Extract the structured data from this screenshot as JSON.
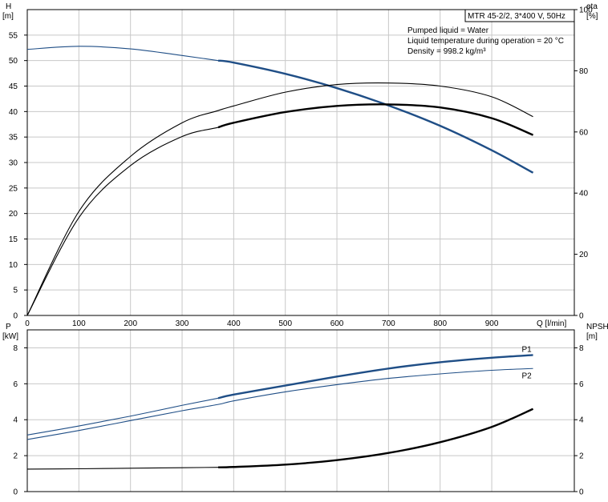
{
  "chart_data": [
    {
      "type": "line",
      "panel": "top",
      "title_box": "MTR 45-2/2, 3*400 V, 50Hz",
      "info_lines": [
        "Pumped liquid = Water",
        "Liquid temperature during operation = 20 °C",
        "Density = 998.2 kg/m³"
      ],
      "left_axis": {
        "label_top": "H",
        "label_unit": "[m]",
        "min": 0,
        "max": 60,
        "ticks": [
          0,
          5,
          10,
          15,
          20,
          25,
          30,
          35,
          40,
          45,
          50,
          55
        ]
      },
      "right_axis": {
        "label_top": "eta",
        "label_unit": "[%]",
        "min": 0,
        "max": 100,
        "ticks": [
          0,
          20,
          40,
          60,
          80,
          100
        ]
      },
      "x_axis": {
        "label": "Q [l/min]",
        "min": 0,
        "max": 1060,
        "ticks": [
          0,
          100,
          200,
          300,
          400,
          500,
          600,
          700,
          800,
          900
        ]
      },
      "grid": true,
      "series": [
        {
          "axis": "left",
          "color": "#1f4e86",
          "style": "head",
          "x": [
            0,
            100,
            200,
            300,
            370,
            400,
            500,
            600,
            700,
            800,
            900,
            980
          ],
          "y": [
            52.2,
            52.8,
            52.3,
            51.0,
            50.0,
            49.6,
            47.4,
            44.6,
            41.2,
            37.2,
            32.4,
            28.0
          ],
          "bold_from": 370
        },
        {
          "axis": "right",
          "color": "#000000",
          "style": "eta1",
          "x": [
            0,
            100,
            200,
            300,
            370,
            400,
            500,
            600,
            700,
            800,
            900,
            980
          ],
          "y": [
            0,
            34,
            52,
            63,
            67,
            68.5,
            73,
            75.5,
            76,
            75,
            71.5,
            65
          ],
          "bold_from": 9999
        },
        {
          "axis": "right",
          "color": "#000000",
          "style": "eta2",
          "x": [
            0,
            100,
            200,
            300,
            370,
            400,
            500,
            600,
            700,
            800,
            900,
            980
          ],
          "y": [
            0,
            32,
            49,
            58.5,
            61.5,
            63,
            66.5,
            68.5,
            69,
            68,
            64.5,
            59
          ],
          "bold_from": 370
        }
      ]
    },
    {
      "type": "line",
      "panel": "bottom",
      "left_axis": {
        "label_top": "P",
        "label_unit": "[kW]",
        "min": 0,
        "max": 9,
        "ticks": [
          0,
          2,
          4,
          6,
          8
        ]
      },
      "right_axis": {
        "label_top": "NPSH",
        "label_unit": "[m]",
        "min": 0,
        "max": 9,
        "ticks": [
          0,
          2,
          4,
          6,
          8
        ]
      },
      "x_axis": {
        "min": 0,
        "max": 1060,
        "ticks": [
          0,
          100,
          200,
          300,
          400,
          500,
          600,
          700,
          800,
          900
        ]
      },
      "grid": true,
      "series": [
        {
          "name": "P1",
          "axis": "left",
          "color": "#1f4e86",
          "x": [
            0,
            100,
            200,
            300,
            370,
            400,
            500,
            600,
            700,
            800,
            900,
            980
          ],
          "y": [
            3.15,
            3.65,
            4.2,
            4.8,
            5.2,
            5.4,
            5.9,
            6.4,
            6.85,
            7.2,
            7.45,
            7.6
          ],
          "bold_from": 370
        },
        {
          "name": "P2",
          "axis": "left",
          "color": "#1f4e86",
          "x": [
            0,
            100,
            200,
            300,
            370,
            400,
            500,
            600,
            700,
            800,
            900,
            980
          ],
          "y": [
            2.9,
            3.4,
            3.95,
            4.5,
            4.85,
            5.05,
            5.55,
            5.95,
            6.3,
            6.55,
            6.75,
            6.85
          ],
          "bold_from": 9999
        },
        {
          "axis": "right",
          "color": "#000000",
          "x": [
            0,
            100,
            200,
            300,
            370,
            400,
            500,
            600,
            700,
            800,
            900,
            980
          ],
          "y": [
            1.25,
            1.27,
            1.3,
            1.33,
            1.35,
            1.37,
            1.5,
            1.75,
            2.15,
            2.75,
            3.6,
            4.6
          ],
          "bold_from": 370
        }
      ]
    }
  ]
}
